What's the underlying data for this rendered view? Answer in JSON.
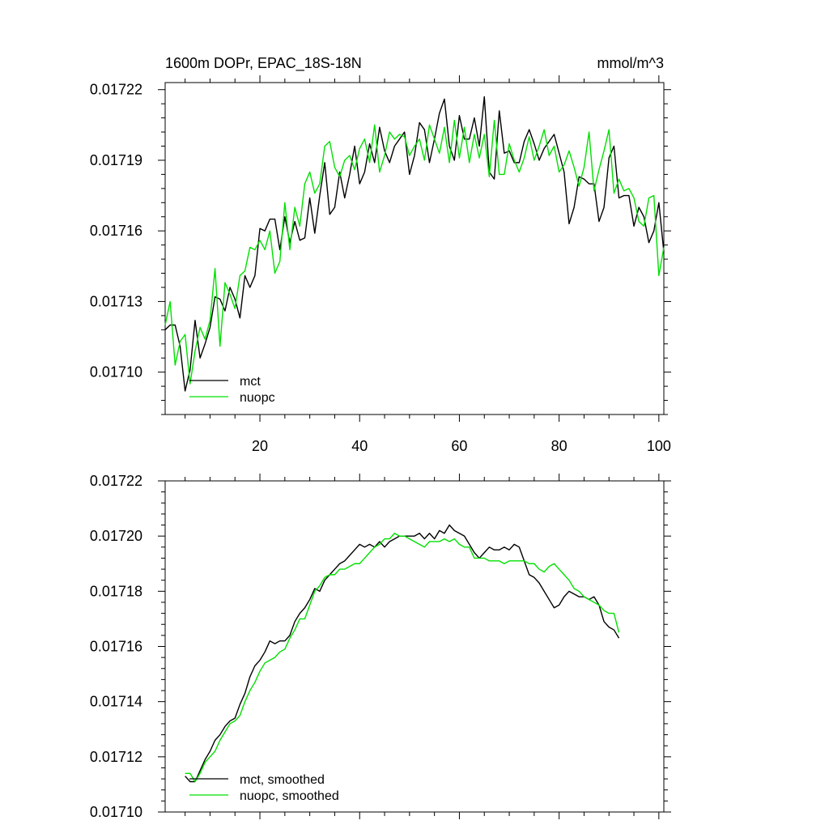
{
  "chart_data": [
    {
      "type": "line",
      "title": "1600m DOPr, EPAC_18S-18N",
      "units": "mmol/m^3",
      "xlim": [
        1,
        101
      ],
      "ylim": [
        0.017082,
        0.017223
      ],
      "xticks": [
        20,
        40,
        60,
        80,
        100
      ],
      "yticks": [
        0.0171,
        0.01713,
        0.01716,
        0.01719,
        0.01722
      ],
      "ytick_labels": [
        "0.01710",
        "0.01713",
        "0.01716",
        "0.01719",
        "0.01722"
      ],
      "legend": "bottom-left",
      "colors": {
        "mct": "#000000",
        "nuopc": "#00e000"
      },
      "series": [
        {
          "name": "mct",
          "x_start": 1,
          "values": [
            0.017118,
            0.01712,
            0.01712,
            0.017111,
            0.017092,
            0.017101,
            0.017122,
            0.017106,
            0.017112,
            0.017119,
            0.017132,
            0.017131,
            0.017126,
            0.017136,
            0.017131,
            0.017123,
            0.017141,
            0.017136,
            0.017141,
            0.017161,
            0.01716,
            0.017165,
            0.017165,
            0.017152,
            0.017166,
            0.017155,
            0.017164,
            0.017156,
            0.017157,
            0.017174,
            0.017159,
            0.017175,
            0.017189,
            0.017167,
            0.01717,
            0.017185,
            0.017174,
            0.017184,
            0.017196,
            0.01718,
            0.017185,
            0.017197,
            0.017189,
            0.017204,
            0.017194,
            0.017189,
            0.017196,
            0.017199,
            0.017202,
            0.017184,
            0.017192,
            0.017206,
            0.017203,
            0.017189,
            0.017199,
            0.01721,
            0.017216,
            0.017196,
            0.01719,
            0.017209,
            0.017199,
            0.017199,
            0.017208,
            0.017196,
            0.017217,
            0.017185,
            0.017182,
            0.017211,
            0.017193,
            0.017194,
            0.017189,
            0.017189,
            0.017198,
            0.017203,
            0.017197,
            0.01719,
            0.017195,
            0.017198,
            0.017201,
            0.017193,
            0.017185,
            0.017163,
            0.01717,
            0.017183,
            0.017182,
            0.01718,
            0.01718,
            0.017164,
            0.01717,
            0.017191,
            0.017196,
            0.017174,
            0.017175,
            0.017175,
            0.017162,
            0.01717,
            0.017166,
            0.017155,
            0.01716,
            0.017172,
            0.017151
          ]
        },
        {
          "name": "nuopc",
          "x_start": 1,
          "values": [
            0.01712,
            0.01713,
            0.017103,
            0.017113,
            0.017116,
            0.017095,
            0.017109,
            0.017119,
            0.017114,
            0.017122,
            0.017144,
            0.017111,
            0.017138,
            0.017133,
            0.017127,
            0.017141,
            0.017143,
            0.017153,
            0.017152,
            0.017156,
            0.017152,
            0.01716,
            0.017142,
            0.017147,
            0.017172,
            0.017152,
            0.01717,
            0.017162,
            0.01718,
            0.017185,
            0.017176,
            0.01718,
            0.017196,
            0.017198,
            0.017187,
            0.017183,
            0.01719,
            0.017192,
            0.017186,
            0.017195,
            0.017199,
            0.017189,
            0.017205,
            0.017185,
            0.017192,
            0.017202,
            0.017199,
            0.017201,
            0.0172,
            0.017192,
            0.017196,
            0.017199,
            0.01719,
            0.017205,
            0.017199,
            0.017193,
            0.017204,
            0.017189,
            0.017207,
            0.017191,
            0.017204,
            0.017189,
            0.017201,
            0.017191,
            0.017201,
            0.017183,
            0.017207,
            0.017184,
            0.017184,
            0.017197,
            0.01719,
            0.017185,
            0.017191,
            0.0172,
            0.01719,
            0.017196,
            0.017203,
            0.017192,
            0.017196,
            0.017185,
            0.017188,
            0.017194,
            0.017187,
            0.017179,
            0.017187,
            0.017202,
            0.017177,
            0.017186,
            0.017194,
            0.017203,
            0.017176,
            0.017182,
            0.017177,
            0.017178,
            0.017174,
            0.017164,
            0.017162,
            0.017174,
            0.017175,
            0.017141,
            0.017153
          ]
        }
      ]
    },
    {
      "type": "line",
      "title": "",
      "xlim": [
        1,
        101
      ],
      "ylim": [
        0.0171,
        0.01722
      ],
      "xticks": [
        20,
        40,
        60,
        80,
        100
      ],
      "yticks": [
        0.0171,
        0.01712,
        0.01714,
        0.01716,
        0.01718,
        0.0172,
        0.01722
      ],
      "ytick_labels": [
        "0.01710",
        "0.01712",
        "0.01714",
        "0.01716",
        "0.01718",
        "0.01720",
        "0.01722"
      ],
      "legend": "bottom-left",
      "colors": {
        "mct, smoothed": "#000000",
        "nuopc, smoothed": "#00e000"
      },
      "series": [
        {
          "name": "mct, smoothed",
          "x_start": 5,
          "values": [
            0.017113,
            0.017111,
            0.017111,
            0.017115,
            0.017119,
            0.017122,
            0.017126,
            0.017128,
            0.017131,
            0.017133,
            0.017134,
            0.017139,
            0.017143,
            0.017149,
            0.017153,
            0.017155,
            0.017158,
            0.017162,
            0.017161,
            0.017162,
            0.017162,
            0.017164,
            0.017169,
            0.017172,
            0.017174,
            0.017177,
            0.017181,
            0.01718,
            0.017184,
            0.017186,
            0.017188,
            0.01719,
            0.017191,
            0.017193,
            0.017195,
            0.017197,
            0.017196,
            0.017197,
            0.017196,
            0.017198,
            0.017196,
            0.017198,
            0.017199,
            0.0172,
            0.0172,
            0.0172,
            0.0172,
            0.017201,
            0.017199,
            0.017201,
            0.017199,
            0.017202,
            0.017201,
            0.017204,
            0.017202,
            0.017201,
            0.0172,
            0.017197,
            0.017194,
            0.017192,
            0.017194,
            0.017196,
            0.017195,
            0.017195,
            0.017196,
            0.017195,
            0.017197,
            0.017196,
            0.017191,
            0.017186,
            0.017185,
            0.017183,
            0.01718,
            0.017177,
            0.017174,
            0.017175,
            0.017178,
            0.01718,
            0.017179,
            0.017178,
            0.017178,
            0.017177,
            0.017178,
            0.017175,
            0.017169,
            0.017167,
            0.017166,
            0.017163
          ]
        },
        {
          "name": "nuopc, smoothed",
          "x_start": 5,
          "values": [
            0.017114,
            0.017114,
            0.017111,
            0.017114,
            0.017118,
            0.01712,
            0.017122,
            0.017126,
            0.017129,
            0.017132,
            0.017133,
            0.017135,
            0.01714,
            0.017144,
            0.017147,
            0.017151,
            0.017154,
            0.017155,
            0.017156,
            0.017158,
            0.017159,
            0.017163,
            0.017166,
            0.01717,
            0.01717,
            0.017175,
            0.01718,
            0.017182,
            0.017185,
            0.017186,
            0.017186,
            0.017188,
            0.017188,
            0.017189,
            0.01719,
            0.01719,
            0.017192,
            0.017194,
            0.017196,
            0.017197,
            0.017199,
            0.017199,
            0.017201,
            0.0172,
            0.0172,
            0.017199,
            0.017198,
            0.017197,
            0.017196,
            0.017198,
            0.017198,
            0.017198,
            0.017199,
            0.017198,
            0.017199,
            0.017197,
            0.017196,
            0.017196,
            0.017192,
            0.017192,
            0.017192,
            0.017191,
            0.017191,
            0.017191,
            0.01719,
            0.017191,
            0.017191,
            0.017191,
            0.017191,
            0.01719,
            0.01719,
            0.017188,
            0.017187,
            0.017189,
            0.01719,
            0.017188,
            0.017186,
            0.017184,
            0.017181,
            0.01718,
            0.017178,
            0.017177,
            0.017176,
            0.017175,
            0.017173,
            0.017172,
            0.017172,
            0.017165
          ]
        }
      ]
    }
  ]
}
